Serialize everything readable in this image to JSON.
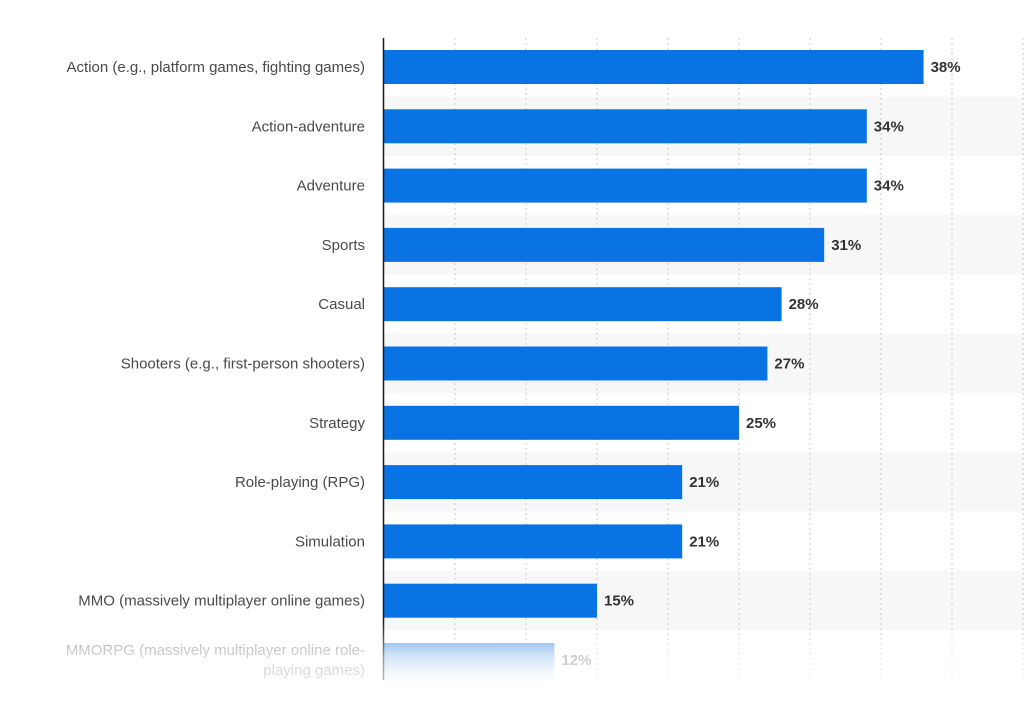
{
  "chart_data": {
    "type": "bar",
    "orientation": "horizontal",
    "categories": [
      "Action (e.g., platform games, fighting games)",
      "Action-adventure",
      "Adventure",
      "Sports",
      "Casual",
      "Shooters (e.g., first-person shooters)",
      "Strategy",
      "Role-playing (RPG)",
      "Simulation",
      "MMO (massively multiplayer online games)",
      "MMORPG (massively multiplayer online role-playing games)"
    ],
    "category_lines": [
      [
        "Action (e.g., platform games, fighting games)"
      ],
      [
        "Action-adventure"
      ],
      [
        "Adventure"
      ],
      [
        "Sports"
      ],
      [
        "Casual"
      ],
      [
        "Shooters (e.g., first-person shooters)"
      ],
      [
        "Strategy"
      ],
      [
        "Role-playing (RPG)"
      ],
      [
        "Simulation"
      ],
      [
        "MMO (massively multiplayer online games)"
      ],
      [
        "MMORPG (massively multiplayer online role-",
        "playing games)"
      ]
    ],
    "values": [
      38,
      34,
      34,
      31,
      28,
      27,
      25,
      21,
      21,
      15,
      12
    ],
    "value_labels": [
      "38%",
      "34%",
      "34%",
      "31%",
      "28%",
      "27%",
      "25%",
      "21%",
      "21%",
      "15%",
      "12%"
    ],
    "xlim": [
      0,
      45
    ],
    "grid": true,
    "title": "",
    "xlabel": "",
    "ylabel": ""
  },
  "colors": {
    "bar": "#0a73e3",
    "bar_faded_top": "#6fa8e8",
    "category_text": "#4a4a4a",
    "value_text": "#333333",
    "grid": "#c9c9c9",
    "axis": "#1a1a1a",
    "band": "#f7f7f7"
  }
}
